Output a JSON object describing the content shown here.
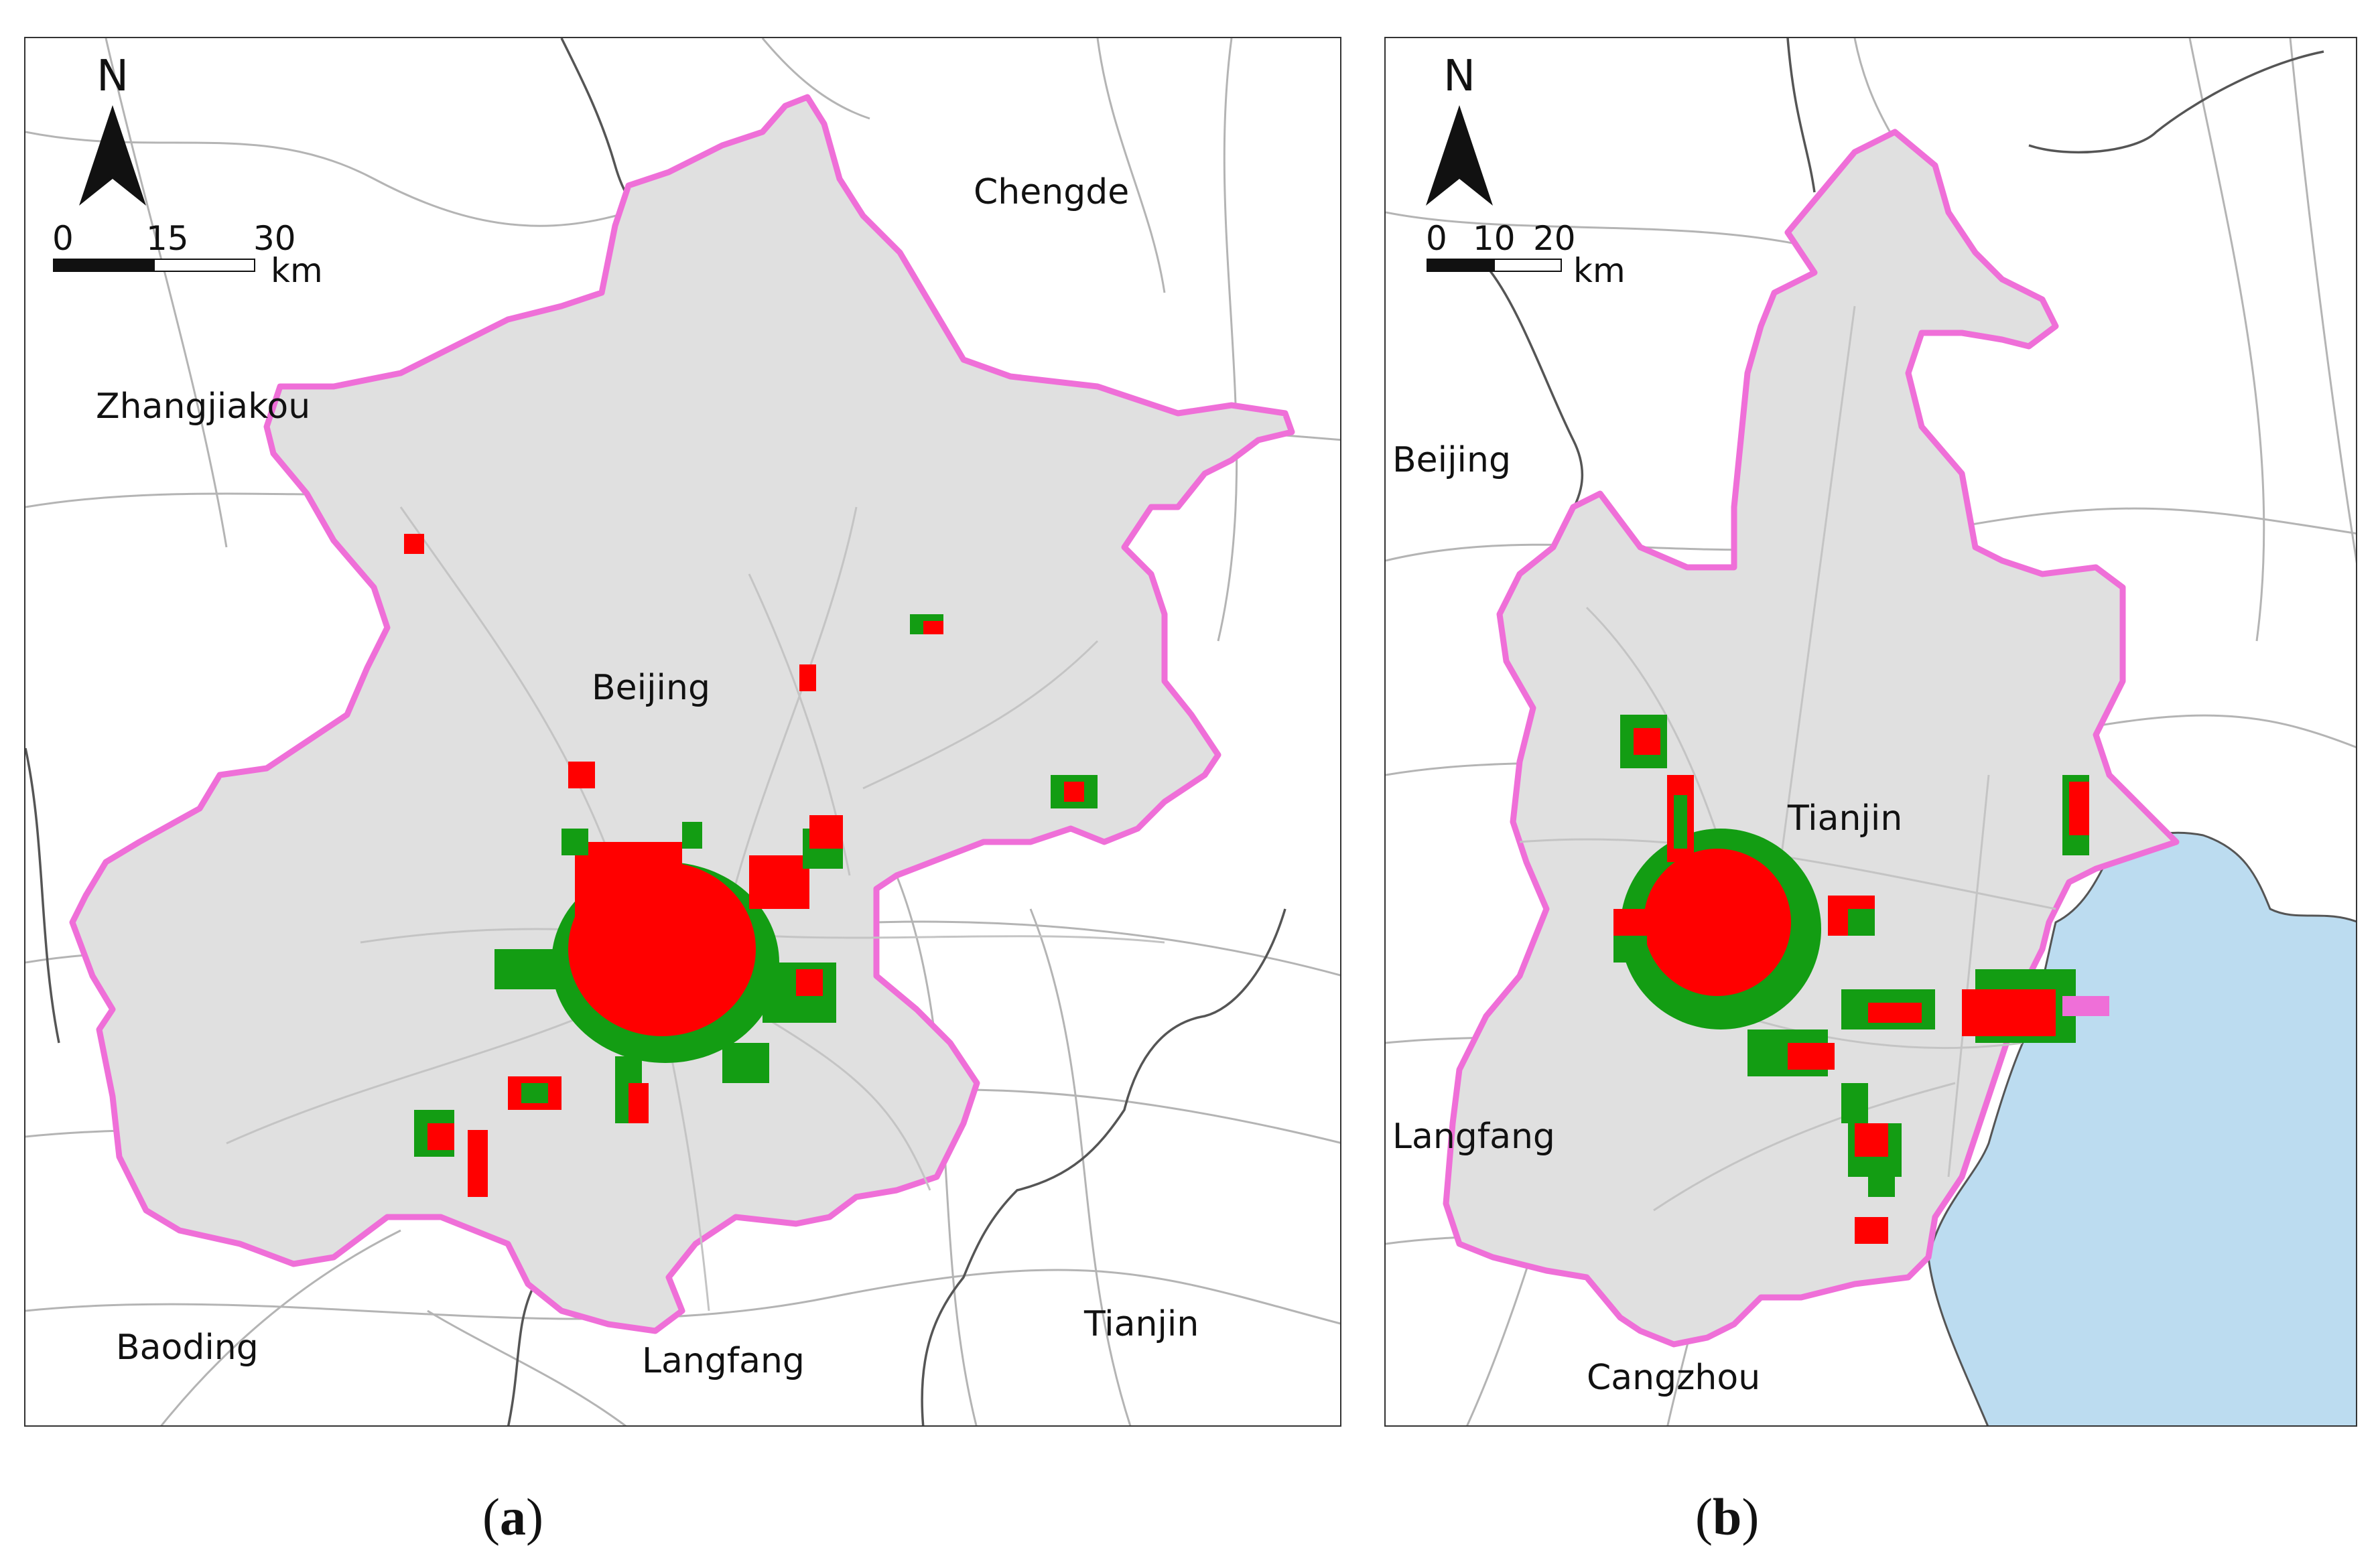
{
  "figure": {
    "colors": {
      "region_fill": "#e0e0e0",
      "boundary": "#ef6fd8",
      "road": "#b4b4b4",
      "admin_border": "#555555",
      "urban_red": "#ff0000",
      "urban_green": "#139d13",
      "sea": "#bcdcf0"
    },
    "panel_a": {
      "caption_letter": "a",
      "north_letter": "N",
      "scale_ticks": [
        "0",
        "15",
        "30"
      ],
      "scale_unit": "km",
      "labels": {
        "chengde": "Chengde",
        "zhangjiakou": "Zhangjiakou",
        "beijing": "Beijing",
        "baoding": "Baoding",
        "langfang": "Langfang",
        "tianjin": "Tianjin"
      }
    },
    "panel_b": {
      "caption_letter": "b",
      "north_letter": "N",
      "scale_ticks": [
        "0",
        "10",
        "20"
      ],
      "scale_unit": "km",
      "labels": {
        "beijing": "Beijing",
        "tianjin": "Tianjin",
        "langfang": "Langfang",
        "cangzhou": "Cangzhou"
      }
    }
  }
}
